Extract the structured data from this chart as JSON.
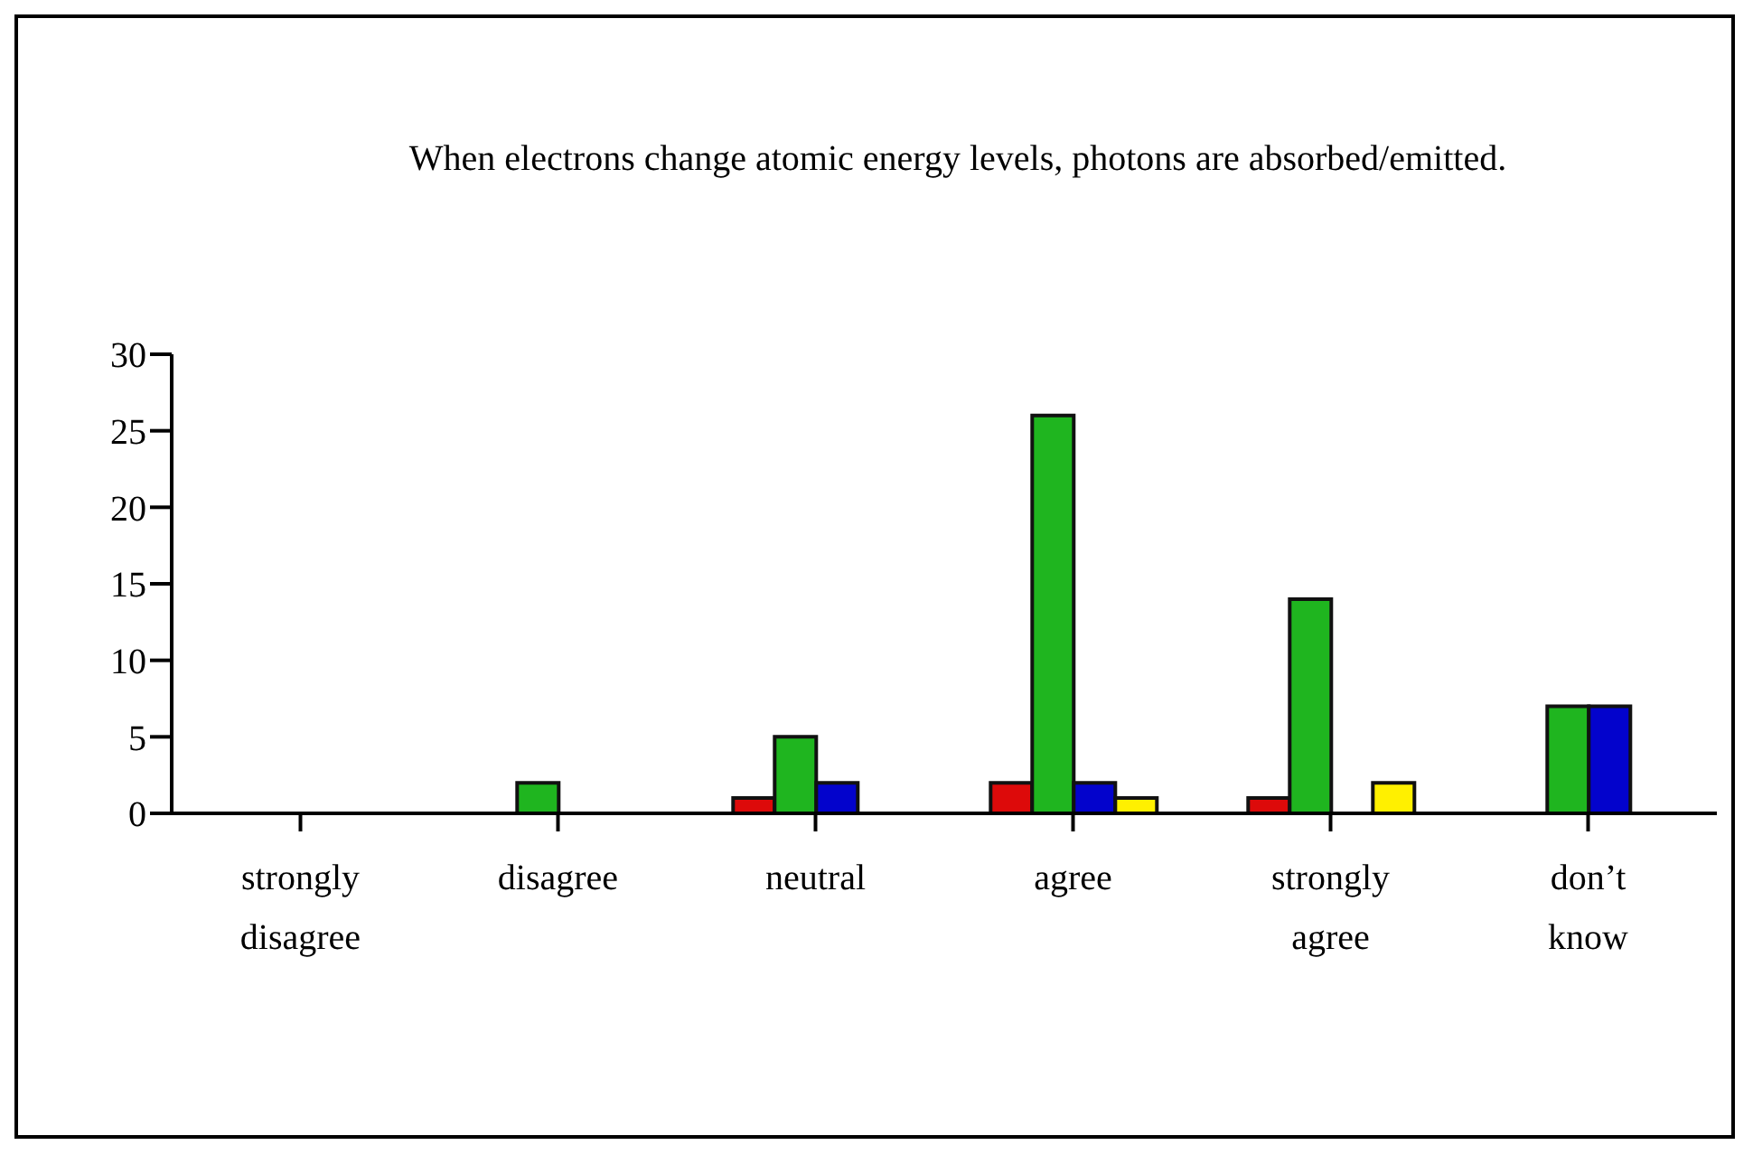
{
  "chart_data": {
    "type": "bar",
    "title": "When electrons change atomic energy levels, photons are absorbed/emitted.",
    "categories": [
      "strongly disagree",
      "disagree",
      "neutral",
      "agree",
      "strongly agree",
      "don’t know"
    ],
    "series": [
      {
        "color": "#dd0a0a",
        "values": [
          0,
          0,
          1,
          2,
          1,
          0
        ]
      },
      {
        "color": "#1fb51f",
        "values": [
          0,
          2,
          5,
          26,
          14,
          7
        ]
      },
      {
        "color": "#0303cc",
        "values": [
          0,
          0,
          2,
          2,
          0,
          7
        ]
      },
      {
        "color": "#fff000",
        "values": [
          0,
          0,
          0,
          1,
          2,
          0
        ]
      }
    ],
    "ylim": [
      0,
      30
    ],
    "yticks": [
      0,
      5,
      10,
      15,
      20,
      25,
      30
    ],
    "grid": false,
    "legend": false
  }
}
